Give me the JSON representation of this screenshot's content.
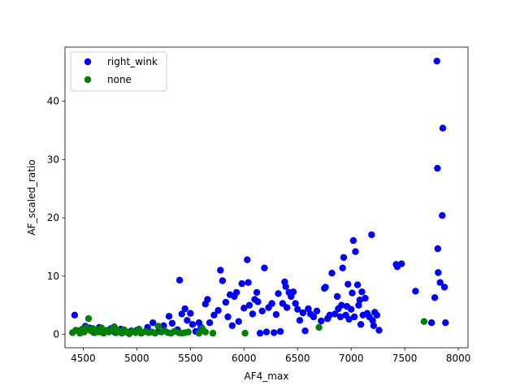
{
  "chart_data": {
    "type": "scatter",
    "title": "",
    "xlabel": "AF4_max",
    "ylabel": "AF_scaled_ratio",
    "xlim": [
      4330,
      8090
    ],
    "ylim": [
      -2.3,
      49.3
    ],
    "xticks": [
      4500,
      5000,
      5500,
      6000,
      6500,
      7000,
      7500,
      8000
    ],
    "yticks": [
      0,
      10,
      20,
      30,
      40
    ],
    "grid": false,
    "legend_position": "upper-left",
    "series": [
      {
        "name": "right_wink",
        "color": "#0000ff",
        "points": [
          [
            4420,
            3.3
          ],
          [
            4450,
            0.6
          ],
          [
            4480,
            0.4
          ],
          [
            4500,
            0.8
          ],
          [
            4520,
            1.4
          ],
          [
            4560,
            1.1
          ],
          [
            4600,
            0.3
          ],
          [
            4650,
            1.2
          ],
          [
            4700,
            0.5
          ],
          [
            4760,
            1.0
          ],
          [
            4800,
            0.3
          ],
          [
            4850,
            0.9
          ],
          [
            4900,
            0.4
          ],
          [
            4950,
            0.6
          ],
          [
            5000,
            0.7
          ],
          [
            5050,
            0.3
          ],
          [
            5100,
            1.2
          ],
          [
            5150,
            2.0
          ],
          [
            5200,
            0.5
          ],
          [
            5250,
            1.5
          ],
          [
            5300,
            3.1
          ],
          [
            5330,
            1.9
          ],
          [
            5380,
            0.8
          ],
          [
            5400,
            9.3
          ],
          [
            5420,
            3.5
          ],
          [
            5450,
            4.4
          ],
          [
            5470,
            2.4
          ],
          [
            5500,
            3.6
          ],
          [
            5520,
            1.7
          ],
          [
            5550,
            0.5
          ],
          [
            5580,
            2.0
          ],
          [
            5600,
            1.2
          ],
          [
            5640,
            5.2
          ],
          [
            5660,
            6.0
          ],
          [
            5680,
            2.0
          ],
          [
            5720,
            3.3
          ],
          [
            5760,
            4.1
          ],
          [
            5780,
            11.0
          ],
          [
            5800,
            9.2
          ],
          [
            5830,
            5.5
          ],
          [
            5850,
            3.0
          ],
          [
            5870,
            6.8
          ],
          [
            5890,
            1.5
          ],
          [
            5910,
            6.5
          ],
          [
            5930,
            7.2
          ],
          [
            5950,
            2.2
          ],
          [
            5980,
            8.7
          ],
          [
            6000,
            4.5
          ],
          [
            6030,
            12.8
          ],
          [
            6040,
            8.9
          ],
          [
            6050,
            5.0
          ],
          [
            6080,
            3.5
          ],
          [
            6100,
            6.0
          ],
          [
            6120,
            7.2
          ],
          [
            6130,
            5.6
          ],
          [
            6150,
            0.2
          ],
          [
            6170,
            4.0
          ],
          [
            6190,
            11.4
          ],
          [
            6210,
            0.4
          ],
          [
            6230,
            4.6
          ],
          [
            6260,
            5.3
          ],
          [
            6280,
            0.3
          ],
          [
            6300,
            3.4
          ],
          [
            6320,
            7.0
          ],
          [
            6340,
            0.5
          ],
          [
            6360,
            5.3
          ],
          [
            6380,
            9.0
          ],
          [
            6390,
            8.2
          ],
          [
            6400,
            4.6
          ],
          [
            6420,
            7.2
          ],
          [
            6440,
            6.5
          ],
          [
            6460,
            7.3
          ],
          [
            6480,
            5.3
          ],
          [
            6500,
            4.3
          ],
          [
            6520,
            2.4
          ],
          [
            6550,
            3.7
          ],
          [
            6570,
            0.6
          ],
          [
            6600,
            4.4
          ],
          [
            6620,
            3.5
          ],
          [
            6650,
            3.0
          ],
          [
            6680,
            4.0
          ],
          [
            6720,
            2.3
          ],
          [
            6750,
            7.9
          ],
          [
            6760,
            8.1
          ],
          [
            6780,
            2.7
          ],
          [
            6800,
            3.3
          ],
          [
            6820,
            10.5
          ],
          [
            6850,
            3.5
          ],
          [
            6870,
            6.5
          ],
          [
            6880,
            4.4
          ],
          [
            6900,
            3.0
          ],
          [
            6910,
            5.0
          ],
          [
            6920,
            11.4
          ],
          [
            6930,
            13.2
          ],
          [
            6950,
            3.3
          ],
          [
            6960,
            4.8
          ],
          [
            6970,
            8.6
          ],
          [
            6980,
            2.6
          ],
          [
            7000,
            4.3
          ],
          [
            7010,
            7.1
          ],
          [
            7020,
            16.1
          ],
          [
            7030,
            3.0
          ],
          [
            7040,
            14.2
          ],
          [
            7060,
            8.5
          ],
          [
            7070,
            5.0
          ],
          [
            7080,
            5.9
          ],
          [
            7090,
            1.7
          ],
          [
            7100,
            7.3
          ],
          [
            7110,
            3.3
          ],
          [
            7130,
            6.2
          ],
          [
            7150,
            3.6
          ],
          [
            7170,
            3.0
          ],
          [
            7190,
            17.1
          ],
          [
            7200,
            2.4
          ],
          [
            7210,
            1.5
          ],
          [
            7220,
            3.8
          ],
          [
            7240,
            3.3
          ],
          [
            7260,
            0.7
          ],
          [
            7420,
            12.0
          ],
          [
            7430,
            11.6
          ],
          [
            7470,
            12.1
          ],
          [
            7600,
            7.4
          ],
          [
            7750,
            2.0
          ],
          [
            7780,
            6.3
          ],
          [
            7800,
            46.9
          ],
          [
            7805,
            28.5
          ],
          [
            7808,
            14.7
          ],
          [
            7812,
            10.6
          ],
          [
            7830,
            8.9
          ],
          [
            7850,
            20.4
          ],
          [
            7855,
            35.4
          ],
          [
            7870,
            8.1
          ],
          [
            7880,
            2.0
          ]
        ]
      },
      {
        "name": "none",
        "color": "#008000",
        "points": [
          [
            4400,
            0.3
          ],
          [
            4430,
            0.7
          ],
          [
            4470,
            0.2
          ],
          [
            4490,
            0.9
          ],
          [
            4510,
            0.4
          ],
          [
            4530,
            1.2
          ],
          [
            4550,
            2.7
          ],
          [
            4570,
            0.6
          ],
          [
            4590,
            1.0
          ],
          [
            4610,
            0.3
          ],
          [
            4630,
            0.8
          ],
          [
            4650,
            0.4
          ],
          [
            4670,
            1.1
          ],
          [
            4690,
            0.2
          ],
          [
            4720,
            0.7
          ],
          [
            4740,
            0.4
          ],
          [
            4770,
            0.9
          ],
          [
            4790,
            1.3
          ],
          [
            4810,
            0.3
          ],
          [
            4830,
            0.6
          ],
          [
            4860,
            0.2
          ],
          [
            4880,
            0.8
          ],
          [
            4910,
            0.4
          ],
          [
            4930,
            0.1
          ],
          [
            4960,
            0.5
          ],
          [
            4990,
            0.3
          ],
          [
            5020,
            0.9
          ],
          [
            5040,
            0.2
          ],
          [
            5080,
            0.5
          ],
          [
            5110,
            0.3
          ],
          [
            5140,
            0.4
          ],
          [
            5170,
            0.2
          ],
          [
            5200,
            1.4
          ],
          [
            5230,
            0.4
          ],
          [
            5260,
            0.6
          ],
          [
            5290,
            0.3
          ],
          [
            5320,
            0.2
          ],
          [
            5350,
            0.5
          ],
          [
            5390,
            0.3
          ],
          [
            5420,
            0.2
          ],
          [
            5450,
            0.3
          ],
          [
            5480,
            0.4
          ],
          [
            5580,
            0.2
          ],
          [
            5610,
            1.0
          ],
          [
            5640,
            0.4
          ],
          [
            5710,
            0.2
          ],
          [
            6010,
            0.2
          ],
          [
            6700,
            1.2
          ],
          [
            7680,
            2.2
          ]
        ]
      }
    ]
  }
}
